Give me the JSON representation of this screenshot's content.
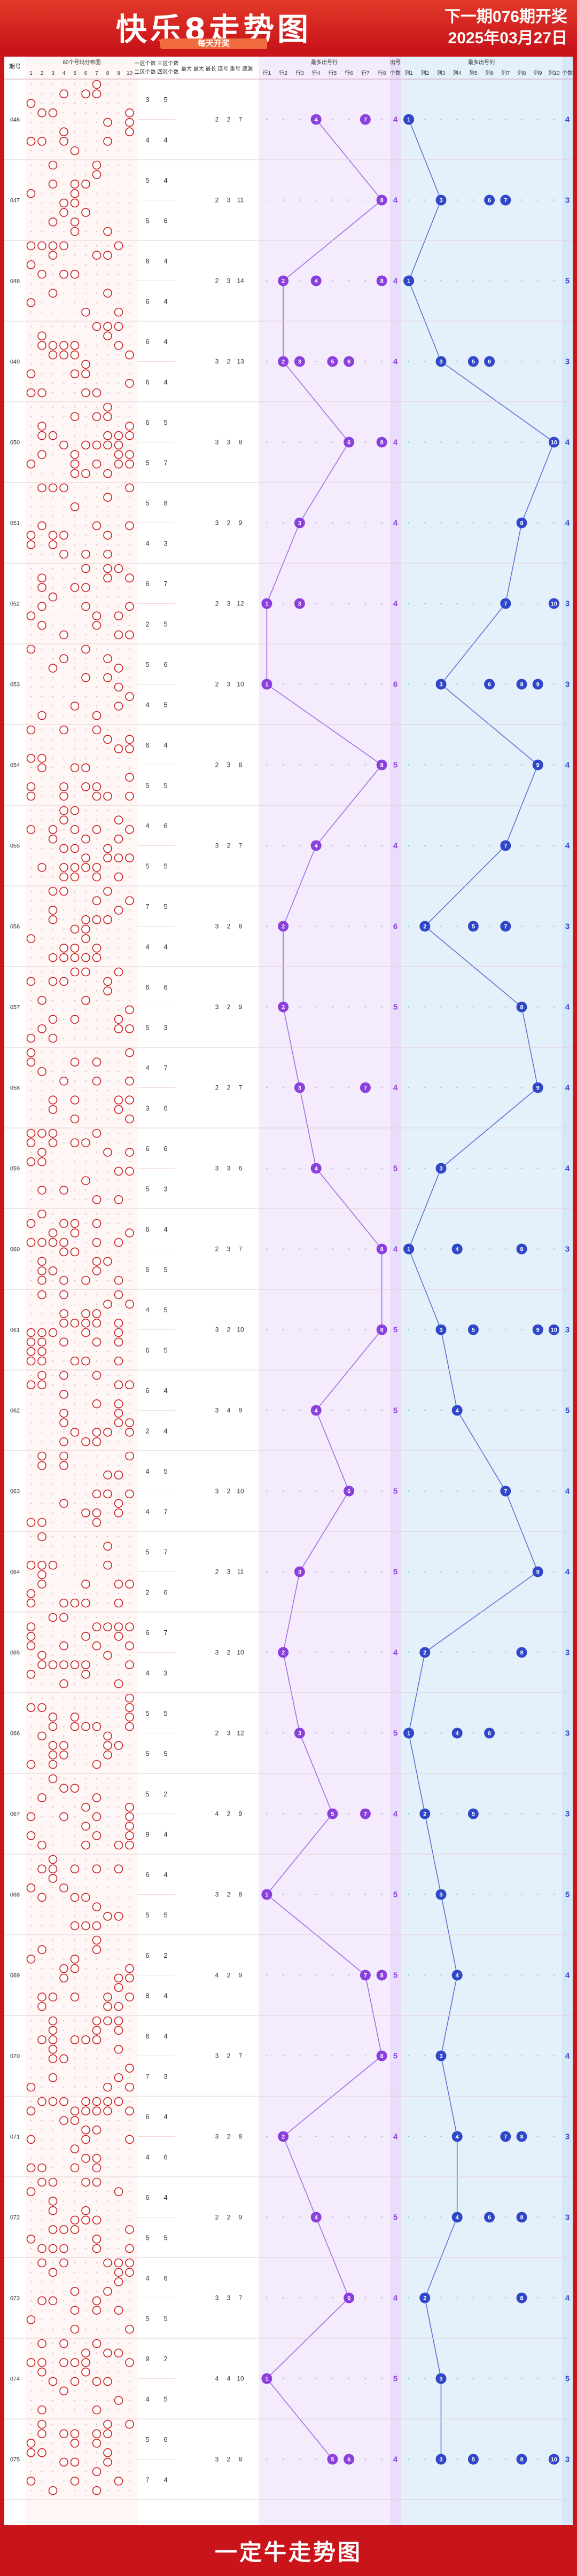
{
  "header": {
    "title": "快乐8走势图",
    "subtitle": "每天开奖",
    "next_draw": "下一期076期开奖",
    "date": "2025年03月27日"
  },
  "footer": {
    "text": "一定牛走势图"
  },
  "colors": {
    "red": "#cc1f1f",
    "purple": "#8b3fdc",
    "blue": "#2f47c8"
  },
  "table_headers": {
    "period": "期号",
    "distribution": "80个号码分布图",
    "zone12": "一区个数 三区个数",
    "zone34": "二区个数 四区个数",
    "stats": "最大 最大 最长 连号 重号 遗漏",
    "group_title": "最多出号行",
    "count": "个数",
    "group2_title": "最多出号列",
    "count2": "个数",
    "issue_label": "出号"
  },
  "col_digits": [
    "1",
    "2",
    "3",
    "4",
    "5",
    "6",
    "7",
    "8",
    "9",
    "10"
  ],
  "row_labels": [
    "行1",
    "行2",
    "行3",
    "行4",
    "行5",
    "行6",
    "行7",
    "行8"
  ],
  "col_labels": [
    "列1",
    "列2",
    "列3",
    "列4",
    "列5",
    "列6",
    "列7",
    "列8",
    "列9",
    "列10"
  ],
  "chart_data": {
    "type": "table",
    "title": "快乐8走势图",
    "periods": [
      {
        "p": "046",
        "z": [
          3,
          5,
          4,
          4
        ],
        "s": [
          2,
          2,
          7
        ],
        "rows": [
          4,
          7
        ],
        "rc": 4,
        "cols": [
          1
        ],
        "cc": 4
      },
      {
        "p": "047",
        "z": [
          5,
          4,
          5,
          6
        ],
        "s": [
          2,
          3,
          11
        ],
        "rows": [
          8
        ],
        "rc": 4,
        "cols": [
          3,
          6,
          7
        ],
        "cc": 3
      },
      {
        "p": "048",
        "z": [
          6,
          4,
          6,
          4
        ],
        "s": [
          2,
          3,
          14
        ],
        "rows": [
          2,
          4,
          8
        ],
        "rc": 4,
        "cols": [
          1
        ],
        "cc": 5
      },
      {
        "p": "049",
        "z": [
          6,
          4,
          6,
          4
        ],
        "s": [
          3,
          2,
          13
        ],
        "rows": [
          2,
          3,
          5,
          6
        ],
        "rc": 4,
        "cols": [
          3,
          5,
          6
        ],
        "cc": 3
      },
      {
        "p": "050",
        "z": [
          6,
          5,
          5,
          7
        ],
        "s": [
          3,
          3,
          8
        ],
        "rows": [
          6,
          8
        ],
        "rc": 4,
        "cols": [
          10
        ],
        "cc": 4
      },
      {
        "p": "051",
        "z": [
          5,
          8,
          4,
          3
        ],
        "s": [
          3,
          2,
          9
        ],
        "rows": [
          3
        ],
        "rc": 4,
        "cols": [
          8
        ],
        "cc": 4
      },
      {
        "p": "052",
        "z": [
          6,
          7,
          2,
          5
        ],
        "s": [
          2,
          3,
          12
        ],
        "rows": [
          1,
          3
        ],
        "rc": 4,
        "cols": [
          7,
          10
        ],
        "cc": 3
      },
      {
        "p": "053",
        "z": [
          5,
          6,
          4,
          5
        ],
        "s": [
          2,
          3,
          10
        ],
        "rows": [
          1
        ],
        "rc": 6,
        "cols": [
          3,
          6,
          8,
          9
        ],
        "cc": 3
      },
      {
        "p": "054",
        "z": [
          6,
          4,
          5,
          5
        ],
        "s": [
          2,
          3,
          8
        ],
        "rows": [
          8
        ],
        "rc": 5,
        "cols": [
          9
        ],
        "cc": 4
      },
      {
        "p": "055",
        "z": [
          4,
          6,
          5,
          5
        ],
        "s": [
          3,
          2,
          7
        ],
        "rows": [
          4
        ],
        "rc": 4,
        "cols": [
          7
        ],
        "cc": 4
      },
      {
        "p": "056",
        "z": [
          7,
          5,
          4,
          4
        ],
        "s": [
          3,
          2,
          8
        ],
        "rows": [
          2
        ],
        "rc": 6,
        "cols": [
          2,
          5,
          7
        ],
        "cc": 3
      },
      {
        "p": "057",
        "z": [
          6,
          6,
          5,
          3
        ],
        "s": [
          3,
          2,
          9
        ],
        "rows": [
          2
        ],
        "rc": 5,
        "cols": [
          8
        ],
        "cc": 4
      },
      {
        "p": "058",
        "z": [
          4,
          7,
          3,
          6
        ],
        "s": [
          2,
          2,
          7
        ],
        "rows": [
          3,
          7
        ],
        "rc": 4,
        "cols": [
          9
        ],
        "cc": 4
      },
      {
        "p": "059",
        "z": [
          6,
          6,
          5,
          3
        ],
        "s": [
          3,
          3,
          6
        ],
        "rows": [
          4
        ],
        "rc": 5,
        "cols": [
          3
        ],
        "cc": 4
      },
      {
        "p": "060",
        "z": [
          6,
          4,
          5,
          5
        ],
        "s": [
          2,
          3,
          7
        ],
        "rows": [
          8
        ],
        "rc": 4,
        "cols": [
          1,
          4,
          8
        ],
        "cc": 3
      },
      {
        "p": "061",
        "z": [
          4,
          5,
          6,
          5
        ],
        "s": [
          3,
          2,
          10
        ],
        "rows": [
          8
        ],
        "rc": 5,
        "cols": [
          3,
          5,
          9,
          10
        ],
        "cc": 3
      },
      {
        "p": "062",
        "z": [
          6,
          4,
          2,
          4
        ],
        "s": [
          3,
          4,
          9
        ],
        "rows": [
          4
        ],
        "rc": 5,
        "cols": [
          4
        ],
        "cc": 5
      },
      {
        "p": "063",
        "z": [
          4,
          5,
          4,
          7
        ],
        "s": [
          3,
          2,
          10
        ],
        "rows": [
          6
        ],
        "rc": 5,
        "cols": [
          7
        ],
        "cc": 4
      },
      {
        "p": "064",
        "z": [
          5,
          7,
          2,
          6
        ],
        "s": [
          2,
          3,
          11
        ],
        "rows": [
          3
        ],
        "rc": 5,
        "cols": [
          9
        ],
        "cc": 4
      },
      {
        "p": "065",
        "z": [
          6,
          7,
          4,
          3
        ],
        "s": [
          3,
          2,
          10
        ],
        "rows": [
          2
        ],
        "rc": 4,
        "cols": [
          2,
          8
        ],
        "cc": 3
      },
      {
        "p": "066",
        "z": [
          5,
          5,
          5,
          5
        ],
        "s": [
          2,
          3,
          12
        ],
        "rows": [
          3
        ],
        "rc": 5,
        "cols": [
          1,
          4,
          6
        ],
        "cc": 3
      },
      {
        "p": "067",
        "z": [
          5,
          2,
          9,
          4
        ],
        "s": [
          4,
          2,
          9
        ],
        "rows": [
          5,
          7
        ],
        "rc": 4,
        "cols": [
          2,
          5
        ],
        "cc": 3
      },
      {
        "p": "068",
        "z": [
          6,
          4,
          5,
          5
        ],
        "s": [
          3,
          2,
          8
        ],
        "rows": [
          1
        ],
        "rc": 5,
        "cols": [
          3
        ],
        "cc": 5
      },
      {
        "p": "069",
        "z": [
          6,
          2,
          8,
          4
        ],
        "s": [
          4,
          2,
          9
        ],
        "rows": [
          7,
          8
        ],
        "rc": 5,
        "cols": [
          4
        ],
        "cc": 4
      },
      {
        "p": "070",
        "z": [
          6,
          4,
          7,
          3
        ],
        "s": [
          3,
          2,
          7
        ],
        "rows": [
          8
        ],
        "rc": 5,
        "cols": [
          3
        ],
        "cc": 4
      },
      {
        "p": "071",
        "z": [
          6,
          4,
          4,
          6
        ],
        "s": [
          3,
          2,
          8
        ],
        "rows": [
          2
        ],
        "rc": 4,
        "cols": [
          4,
          7,
          8
        ],
        "cc": 3
      },
      {
        "p": "072",
        "z": [
          6,
          4,
          5,
          5
        ],
        "s": [
          2,
          2,
          9
        ],
        "rows": [
          4
        ],
        "rc": 5,
        "cols": [
          4,
          6,
          8
        ],
        "cc": 3
      },
      {
        "p": "073",
        "z": [
          4,
          6,
          5,
          5
        ],
        "s": [
          3,
          3,
          7
        ],
        "rows": [
          6
        ],
        "rc": 4,
        "cols": [
          2,
          8
        ],
        "cc": 4
      },
      {
        "p": "074",
        "z": [
          9,
          2,
          4,
          5
        ],
        "s": [
          4,
          4,
          10
        ],
        "rows": [
          1
        ],
        "rc": 5,
        "cols": [
          3
        ],
        "cc": 5
      },
      {
        "p": "075",
        "z": [
          5,
          6,
          7,
          4
        ],
        "s": [
          3,
          2,
          8
        ],
        "rows": [
          5,
          6
        ],
        "rc": 4,
        "cols": [
          3,
          5,
          8,
          10
        ],
        "cc": 3
      }
    ]
  }
}
